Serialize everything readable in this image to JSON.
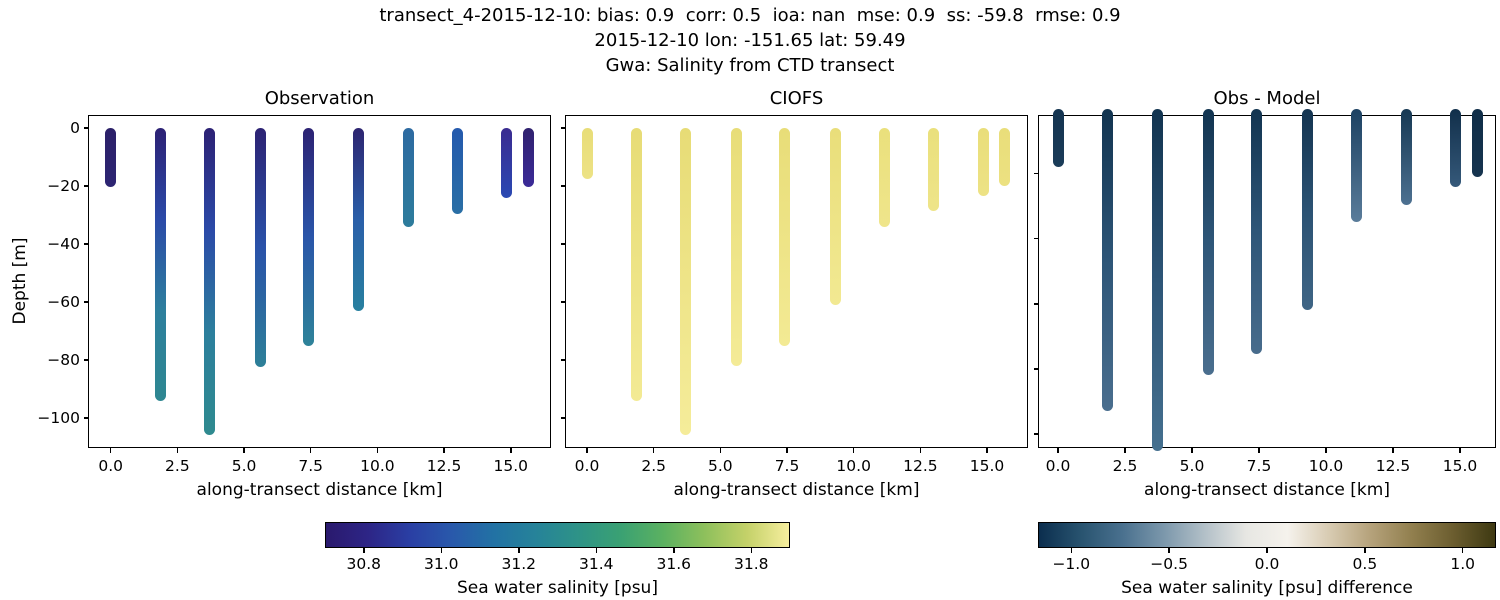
{
  "chart_data": {
    "type": "scatter",
    "figure_kind": "CTD transect salinity comparison: vertical profile casts colored by salinity, 3 subplots",
    "suptitle": {
      "line1": "transect_4-2015-12-10: bias: 0.9  corr: 0.5  ioa: nan  mse: 0.9  ss: -59.8  rmse: 0.9",
      "line2": "2015-12-10 lon: -151.65 lat: 59.49",
      "line3": "Gwa: Salinity from CTD transect"
    },
    "xlabel": "along-transect distance [km]",
    "ylabel": "Depth [m]",
    "x_ticks": [
      0,
      2.5,
      5,
      7.5,
      10,
      12.5,
      15
    ],
    "x_tick_labels": [
      "0.0",
      "2.5",
      "5.0",
      "7.5",
      "10.0",
      "12.5",
      "15.0"
    ],
    "xlim": [
      -0.85,
      16.6
    ],
    "cast_x_km": [
      0.0,
      1.85,
      3.7,
      5.6,
      7.4,
      9.3,
      11.15,
      13.0,
      14.85,
      15.65
    ],
    "legend": "none",
    "grid": false,
    "panels": [
      {
        "title": "Observation",
        "colormap": "haline",
        "ylim": [
          -110.5,
          4.5
        ],
        "y_tick_values": [
          0,
          -20,
          -40,
          -60,
          -80,
          -100
        ],
        "y_tick_labels": [
          "0",
          "−20",
          "−40",
          "−60",
          "−80",
          "−100"
        ],
        "casts": [
          {
            "km": 0.0,
            "depth_m": 20.5,
            "sal_top_psu": 30.75,
            "sal_bottom_psu": 30.78,
            "colors": [
              "#2b2068",
              "#2d2573"
            ]
          },
          {
            "km": 1.85,
            "depth_m": 94.0,
            "sal_top_psu": 30.75,
            "sal_bottom_psu": 31.3,
            "colors": [
              "#2c2174",
              "#2b4aa8",
              "#2d7f9d",
              "#2e8791"
            ]
          },
          {
            "km": 3.7,
            "depth_m": 106.0,
            "sal_top_psu": 30.75,
            "sal_bottom_psu": 31.32,
            "colors": [
              "#2c2174",
              "#2b4aa8",
              "#2c7f9d",
              "#2f8a8f"
            ]
          },
          {
            "km": 5.6,
            "depth_m": 82.5,
            "sal_top_psu": 30.76,
            "sal_bottom_psu": 31.28,
            "colors": [
              "#2c2273",
              "#2a52a9",
              "#2d8098"
            ]
          },
          {
            "km": 7.4,
            "depth_m": 75.0,
            "sal_top_psu": 30.76,
            "sal_bottom_psu": 31.28,
            "colors": [
              "#2c2273",
              "#2a55a9",
              "#2e8399"
            ]
          },
          {
            "km": 9.3,
            "depth_m": 63.0,
            "sal_top_psu": 30.78,
            "sal_bottom_psu": 31.26,
            "colors": [
              "#2d2470",
              "#2a5fa9",
              "#28809f"
            ]
          },
          {
            "km": 11.15,
            "depth_m": 34.0,
            "sal_top_psu": 31.1,
            "sal_bottom_psu": 31.22,
            "colors": [
              "#2d6aa1",
              "#2d7c9c"
            ]
          },
          {
            "km": 13.0,
            "depth_m": 29.5,
            "sal_top_psu": 31.05,
            "sal_bottom_psu": 31.15,
            "colors": [
              "#2459ad",
              "#2a6fa5"
            ]
          },
          {
            "km": 14.85,
            "depth_m": 24.0,
            "sal_top_psu": 30.85,
            "sal_bottom_psu": 31.0,
            "colors": [
              "#3a2b90",
              "#2a49b3"
            ]
          },
          {
            "km": 15.65,
            "depth_m": 20.5,
            "sal_top_psu": 30.77,
            "sal_bottom_psu": 30.85,
            "colors": [
              "#30216e",
              "#3b2b98"
            ]
          }
        ]
      },
      {
        "title": "CIOFS",
        "colormap": "haline",
        "ylim": [
          -110.5,
          4.5
        ],
        "y_tick_values": [
          0,
          -20,
          -40,
          -60,
          -80,
          -100
        ],
        "y_tick_labels": [],
        "casts": [
          {
            "km": 0.0,
            "depth_m": 17.5,
            "sal_top_psu": 31.86,
            "sal_bottom_psu": 31.88,
            "colors": [
              "#e8dd78",
              "#ede285"
            ]
          },
          {
            "km": 1.85,
            "depth_m": 94.0,
            "sal_top_psu": 31.85,
            "sal_bottom_psu": 31.9,
            "colors": [
              "#e7dc76",
              "#f3ea94"
            ]
          },
          {
            "km": 3.7,
            "depth_m": 106.0,
            "sal_top_psu": 31.85,
            "sal_bottom_psu": 31.9,
            "colors": [
              "#e7dc76",
              "#f5ec9a"
            ]
          },
          {
            "km": 5.6,
            "depth_m": 82.0,
            "sal_top_psu": 31.85,
            "sal_bottom_psu": 31.9,
            "colors": [
              "#e8dd78",
              "#f4eb97"
            ]
          },
          {
            "km": 7.4,
            "depth_m": 75.0,
            "sal_top_psu": 31.85,
            "sal_bottom_psu": 31.9,
            "colors": [
              "#e8dd78",
              "#f3ea94"
            ]
          },
          {
            "km": 9.3,
            "depth_m": 61.0,
            "sal_top_psu": 31.86,
            "sal_bottom_psu": 31.89,
            "colors": [
              "#e9de7a",
              "#f2e992"
            ]
          },
          {
            "km": 11.15,
            "depth_m": 34.0,
            "sal_top_psu": 31.86,
            "sal_bottom_psu": 31.88,
            "colors": [
              "#eae07c",
              "#efe58b"
            ]
          },
          {
            "km": 13.0,
            "depth_m": 28.5,
            "sal_top_psu": 31.86,
            "sal_bottom_psu": 31.88,
            "colors": [
              "#eae07c",
              "#eee489"
            ]
          },
          {
            "km": 14.85,
            "depth_m": 23.5,
            "sal_top_psu": 31.86,
            "sal_bottom_psu": 31.87,
            "colors": [
              "#e9de7a",
              "#ede285"
            ]
          },
          {
            "km": 15.65,
            "depth_m": 20.0,
            "sal_top_psu": 31.86,
            "sal_bottom_psu": 31.87,
            "colors": [
              "#e9de7a",
              "#ece181"
            ]
          }
        ]
      },
      {
        "title": "Obs - Model",
        "colormap": "diff",
        "ylim": [
          -104.5,
          -2
        ],
        "y_tick_values": [
          -20,
          -40,
          -60,
          -80,
          -100
        ],
        "y_tick_labels": [],
        "casts": [
          {
            "km": 0.0,
            "depth_m": 18.0,
            "diff_top_psu": -1.1,
            "diff_bottom_psu": -1.05,
            "colors": [
              "#143450",
              "#1b3c59"
            ]
          },
          {
            "km": 1.85,
            "depth_m": 93.0,
            "diff_top_psu": -1.1,
            "diff_bottom_psu": -0.6,
            "colors": [
              "#123450",
              "#2d5577",
              "#4a6e8e"
            ]
          },
          {
            "km": 3.7,
            "depth_m": 106.0,
            "diff_top_psu": -1.1,
            "diff_bottom_psu": -0.58,
            "colors": [
              "#123450",
              "#2d5577",
              "#45708f"
            ]
          },
          {
            "km": 5.6,
            "depth_m": 82.0,
            "diff_top_psu": -1.1,
            "diff_bottom_psu": -0.62,
            "colors": [
              "#123450",
              "#2e5678",
              "#4a6e8e"
            ]
          },
          {
            "km": 7.4,
            "depth_m": 75.5,
            "diff_top_psu": -1.1,
            "diff_bottom_psu": -0.62,
            "colors": [
              "#123450",
              "#2e5678",
              "#486c8c"
            ]
          },
          {
            "km": 9.3,
            "depth_m": 62.0,
            "diff_top_psu": -1.08,
            "diff_bottom_psu": -0.65,
            "colors": [
              "#143450",
              "#2b5273",
              "#3f6585"
            ]
          },
          {
            "km": 11.15,
            "depth_m": 35.0,
            "diff_top_psu": -0.95,
            "diff_bottom_psu": -0.6,
            "colors": [
              "#1c4162",
              "#5a7c9a"
            ]
          },
          {
            "km": 13.0,
            "depth_m": 29.5,
            "diff_top_psu": -1.0,
            "diff_bottom_psu": -0.65,
            "colors": [
              "#163853",
              "#4d7191"
            ]
          },
          {
            "km": 14.85,
            "depth_m": 24.0,
            "diff_top_psu": -1.1,
            "diff_bottom_psu": -0.85,
            "colors": [
              "#112f4a",
              "#35597a"
            ]
          },
          {
            "km": 15.65,
            "depth_m": 21.0,
            "diff_top_psu": -1.12,
            "diff_bottom_psu": -1.05,
            "colors": [
              "#0f2d47",
              "#16344f"
            ]
          }
        ]
      }
    ],
    "colorbars": [
      {
        "label": "Sea water salinity [psu]",
        "colormap": "haline",
        "orientation": "horizontal",
        "range": [
          30.7,
          31.9
        ],
        "tick_values": [
          30.8,
          31.0,
          31.2,
          31.4,
          31.6,
          31.8
        ],
        "tick_labels": [
          "30.8",
          "31.0",
          "31.2",
          "31.4",
          "31.6",
          "31.8"
        ],
        "gradient": [
          "#2a196d",
          "#2d2586",
          "#2a3fa4",
          "#2959ab",
          "#2272a4",
          "#268399",
          "#2e9387",
          "#3aa173",
          "#5bb161",
          "#8ec05c",
          "#c4d169",
          "#f6ee9e"
        ]
      },
      {
        "label": "Sea water salinity [psu] difference",
        "colormap": "diff",
        "orientation": "horizontal",
        "range": [
          -1.17,
          1.17
        ],
        "tick_values": [
          -1.0,
          -0.5,
          0.0,
          0.5,
          1.0
        ],
        "tick_labels": [
          "−1.0",
          "−0.5",
          "0.0",
          "0.5",
          "1.0"
        ],
        "gradient": [
          "#0b2e4e",
          "#28536f",
          "#49708e",
          "#7b97ab",
          "#b3c0c8",
          "#e7e7e3",
          "#f5f2ec",
          "#d8cbb2",
          "#b5a27b",
          "#917f4e",
          "#6b5d2f",
          "#3e3912"
        ]
      }
    ]
  }
}
